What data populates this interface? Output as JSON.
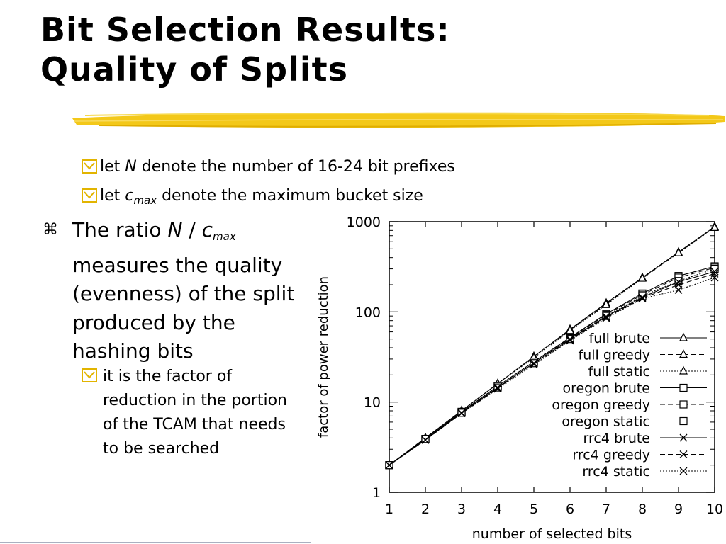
{
  "slide": {
    "title_line1": "Bit Selection Results:",
    "title_line2": "Quality of Splits",
    "sub_bullet1": {
      "pre": "let ",
      "var": "N",
      "post": " denote the number of 16-24 bit prefixes"
    },
    "sub_bullet2": {
      "pre": "let ",
      "var": "c",
      "subscript": "max",
      "post": " denote the maximum bucket size"
    },
    "main_bullet": {
      "marker": "⌘",
      "pre": "The ratio ",
      "var1": "N",
      "slash": " / ",
      "var2": "c",
      "subscript": "max",
      "rest": " measures the quality (evenness) of the split produced by the hashing bits"
    },
    "note_bullet": "it is the factor of reduction in the portion of the TCAM that needs to be searched",
    "colors": {
      "highlight": "#f2c200",
      "bullet_box": "#e2b400",
      "text": "#000000"
    }
  },
  "chart_data": {
    "type": "line",
    "xlabel": "number of selected bits",
    "ylabel": "factor of power reduction",
    "xlim": [
      1,
      10
    ],
    "ylim": [
      1,
      1000
    ],
    "y_scale": "log",
    "x_ticks": [
      "1",
      "2",
      "3",
      "4",
      "5",
      "6",
      "7",
      "8",
      "9",
      "10"
    ],
    "y_ticks": [
      {
        "value": 1,
        "label": "1"
      },
      {
        "value": 10,
        "label": "10"
      },
      {
        "value": 100,
        "label": "100"
      },
      {
        "value": 1000,
        "label": "1000"
      }
    ],
    "legend_position": "right",
    "x": [
      1,
      2,
      3,
      4,
      5,
      6,
      7,
      8,
      9,
      10
    ],
    "series": [
      {
        "name": "full brute",
        "marker": "triangle",
        "dash": "solid",
        "values": [
          2,
          4,
          8,
          16,
          32,
          64,
          125,
          240,
          460,
          880
        ]
      },
      {
        "name": "full greedy",
        "marker": "triangle",
        "dash": "dashed",
        "values": [
          2,
          4,
          8,
          16,
          32,
          63,
          123,
          238,
          455,
          870
        ]
      },
      {
        "name": "full static",
        "marker": "triangle",
        "dash": "dotted",
        "values": [
          2,
          4,
          8,
          16,
          31,
          62,
          120,
          235,
          450,
          860
        ]
      },
      {
        "name": "oregon brute",
        "marker": "square",
        "dash": "solid",
        "values": [
          2,
          3.9,
          7.8,
          15,
          28,
          52,
          95,
          160,
          250,
          320
        ]
      },
      {
        "name": "oregon greedy",
        "marker": "square",
        "dash": "dashed",
        "values": [
          2,
          3.9,
          7.7,
          15,
          28,
          51,
          93,
          155,
          240,
          310
        ]
      },
      {
        "name": "oregon static",
        "marker": "square",
        "dash": "dotted",
        "values": [
          2,
          3.9,
          7.6,
          14.5,
          27,
          50,
          90,
          150,
          220,
          300
        ]
      },
      {
        "name": "rrc4 brute",
        "marker": "x",
        "dash": "solid",
        "values": [
          2,
          3.8,
          7.6,
          14.5,
          27,
          50,
          89,
          145,
          215,
          280
        ]
      },
      {
        "name": "rrc4 greedy",
        "marker": "x",
        "dash": "dashed",
        "values": [
          2,
          3.8,
          7.5,
          14.3,
          27,
          49,
          87,
          142,
          200,
          265
        ]
      },
      {
        "name": "rrc4 static",
        "marker": "x",
        "dash": "dotted",
        "values": [
          2,
          3.8,
          7.5,
          14,
          26,
          48,
          85,
          140,
          175,
          240
        ]
      }
    ]
  }
}
